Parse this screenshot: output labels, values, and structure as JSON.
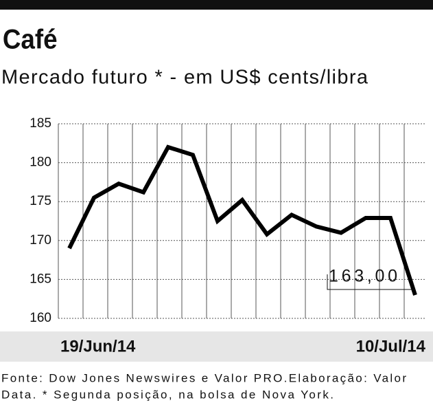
{
  "chart_data": {
    "type": "line",
    "title": "Café",
    "subtitle": "Mercado futuro * - em US$ cents/libra",
    "categories": [
      "19/Jun/14",
      null,
      null,
      null,
      null,
      null,
      null,
      null,
      null,
      null,
      null,
      null,
      null,
      null,
      "10/Jul/14"
    ],
    "series": [
      {
        "color": "#000000",
        "values": [
          169,
          175.5,
          177.3,
          176.2,
          182,
          181,
          172.5,
          175.2,
          170.8,
          173.3,
          171.8,
          171,
          172.9,
          172.9,
          163
        ],
        "value_labels": [
          null,
          null,
          null,
          null,
          null,
          null,
          null,
          null,
          null,
          null,
          null,
          null,
          null,
          null,
          "163,00"
        ]
      }
    ],
    "ylim": [
      160,
      185
    ],
    "yticks": [
      160,
      165,
      170,
      175,
      180,
      185
    ],
    "grid": true,
    "footer": [
      "Fonte: Dow Jones Newswires e Valor PRO.Elaboração: Valor",
      "Data. * Segunda posição, na bolsa de Nova York."
    ]
  }
}
